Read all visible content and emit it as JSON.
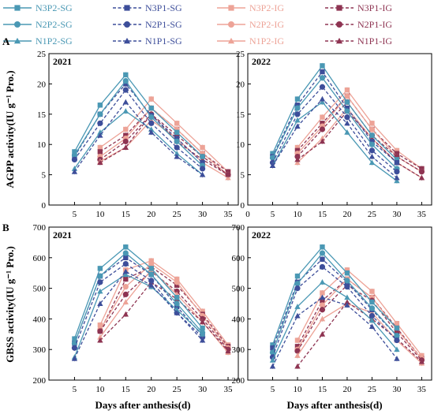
{
  "legend": [
    {
      "name": "N3P2-SG",
      "color": "#4A98B4",
      "dash": "solid",
      "marker": "square"
    },
    {
      "name": "N3P1-SG",
      "color": "#3D4E9A",
      "dash": "dashed",
      "marker": "square"
    },
    {
      "name": "N3P2-IG",
      "color": "#EDA397",
      "dash": "solid",
      "marker": "square"
    },
    {
      "name": "N3P1-IG",
      "color": "#8E3452",
      "dash": "dashed",
      "marker": "square"
    },
    {
      "name": "N2P2-SG",
      "color": "#4A98B4",
      "dash": "solid",
      "marker": "circle"
    },
    {
      "name": "N2P1-SG",
      "color": "#3D4E9A",
      "dash": "dashed",
      "marker": "circle"
    },
    {
      "name": "N2P2-IG",
      "color": "#EDA397",
      "dash": "solid",
      "marker": "circle"
    },
    {
      "name": "N2P1-IG",
      "color": "#8E3452",
      "dash": "dashed",
      "marker": "circle"
    },
    {
      "name": "N1P2-SG",
      "color": "#4A98B4",
      "dash": "solid",
      "marker": "triangle"
    },
    {
      "name": "N1P1-SG",
      "color": "#3D4E9A",
      "dash": "dashed",
      "marker": "triangle"
    },
    {
      "name": "N1P2-IG",
      "color": "#EDA397",
      "dash": "solid",
      "marker": "triangle"
    },
    {
      "name": "N1P1-IG",
      "color": "#8E3452",
      "dash": "dashed",
      "marker": "triangle"
    }
  ],
  "panel_letters": {
    "a": "A",
    "b": "B"
  },
  "ylabels": {
    "agpp": "AGPP activity(IU g⁻¹ Pro.)",
    "gbss": "GBSS activity(IU g⁻¹ Pro.)"
  },
  "xlabel": "Days after anthesis(d)",
  "chart_data": [
    {
      "type": "line",
      "title": "2021",
      "xlabel": "",
      "ylabel": "AGPP activity(IU g⁻¹ Pro.)",
      "ylim": [
        0,
        25
      ],
      "yticks": [
        0,
        5,
        10,
        15,
        20,
        25
      ],
      "ytick_labels": [
        "0",
        "5",
        "10",
        "15",
        "20",
        "25"
      ],
      "xlim": [
        0,
        37
      ],
      "xticks": [
        5,
        10,
        15,
        20,
        25,
        30,
        35
      ],
      "xtick_labels": [
        "5",
        "10",
        "15",
        "20",
        "25",
        "30",
        "35"
      ],
      "x": [
        5,
        10,
        15,
        20,
        25,
        30,
        35
      ],
      "series": [
        {
          "name": "N3P2-SG",
          "values": [
            8.8,
            16.5,
            21.5,
            16.0,
            12.0,
            8.0,
            null
          ]
        },
        {
          "name": "N3P1-SG",
          "values": [
            8.0,
            15.0,
            20.0,
            14.8,
            11.0,
            7.0,
            null
          ]
        },
        {
          "name": "N3P2-IG",
          "values": [
            null,
            9.5,
            12.5,
            17.5,
            13.5,
            9.5,
            5.5
          ]
        },
        {
          "name": "N3P1-IG",
          "values": [
            null,
            8.8,
            11.5,
            16.0,
            12.5,
            8.5,
            5.5
          ]
        },
        {
          "name": "N2P2-SG",
          "values": [
            8.2,
            15.0,
            20.5,
            14.5,
            10.5,
            6.5,
            null
          ]
        },
        {
          "name": "N2P1-SG",
          "values": [
            7.5,
            13.5,
            19.0,
            13.5,
            9.5,
            6.0,
            null
          ]
        },
        {
          "name": "N2P2-IG",
          "values": [
            null,
            8.0,
            11.0,
            16.0,
            12.5,
            8.5,
            5.0
          ]
        },
        {
          "name": "N2P1-IG",
          "values": [
            null,
            7.5,
            10.5,
            15.0,
            11.5,
            8.0,
            5.0
          ]
        },
        {
          "name": "N1P2-SG",
          "values": [
            6.0,
            12.0,
            15.5,
            12.5,
            8.5,
            5.0,
            null
          ]
        },
        {
          "name": "N1P1-SG",
          "values": [
            5.5,
            11.5,
            17.0,
            12.0,
            8.0,
            5.0,
            null
          ]
        },
        {
          "name": "N1P2-IG",
          "values": [
            null,
            7.2,
            9.5,
            14.0,
            11.0,
            7.0,
            4.5
          ]
        },
        {
          "name": "N1P1-IG",
          "values": [
            null,
            7.0,
            9.5,
            15.0,
            10.5,
            7.5,
            5.0
          ]
        }
      ]
    },
    {
      "type": "line",
      "title": "2022",
      "xlabel": "",
      "ylabel": "",
      "ylim": [
        0,
        25
      ],
      "yticks": [
        0,
        5,
        10,
        15,
        20,
        25
      ],
      "ytick_labels": [
        "0",
        "5",
        "10",
        "15",
        "20",
        "25"
      ],
      "xlim": [
        0,
        37
      ],
      "xticks": [
        0,
        5,
        10,
        15,
        20,
        25,
        30,
        35
      ],
      "xtick_labels": [
        "0",
        "5",
        "10",
        "15",
        "20",
        "25",
        "30",
        "35"
      ],
      "x": [
        5,
        10,
        15,
        20,
        25,
        30,
        35
      ],
      "series": [
        {
          "name": "N3P2-SG",
          "values": [
            8.5,
            17.5,
            23.0,
            17.0,
            11.5,
            7.5,
            null
          ]
        },
        {
          "name": "N3P1-SG",
          "values": [
            8.0,
            16.5,
            22.0,
            16.0,
            10.5,
            7.0,
            null
          ]
        },
        {
          "name": "N3P2-IG",
          "values": [
            null,
            9.5,
            14.5,
            19.0,
            13.5,
            9.0,
            6.0
          ]
        },
        {
          "name": "N3P1-IG",
          "values": [
            null,
            9.0,
            13.5,
            18.0,
            12.5,
            8.5,
            6.0
          ]
        },
        {
          "name": "N2P2-SG",
          "values": [
            7.8,
            16.0,
            21.0,
            15.5,
            10.0,
            6.0,
            null
          ]
        },
        {
          "name": "N2P1-SG",
          "values": [
            7.0,
            15.0,
            19.5,
            14.5,
            9.0,
            5.5,
            null
          ]
        },
        {
          "name": "N2P2-IG",
          "values": [
            null,
            8.5,
            13.0,
            18.0,
            12.5,
            8.0,
            5.5
          ]
        },
        {
          "name": "N2P1-IG",
          "values": [
            null,
            8.0,
            12.5,
            17.0,
            11.5,
            8.0,
            5.5
          ]
        },
        {
          "name": "N1P2-SG",
          "values": [
            6.5,
            14.0,
            17.0,
            12.0,
            7.0,
            4.0,
            null
          ]
        },
        {
          "name": "N1P1-SG",
          "values": [
            6.5,
            13.0,
            17.5,
            13.5,
            8.0,
            4.5,
            null
          ]
        },
        {
          "name": "N1P2-IG",
          "values": [
            null,
            7.0,
            11.0,
            16.0,
            11.0,
            7.0,
            4.5
          ]
        },
        {
          "name": "N1P1-IG",
          "values": [
            null,
            7.5,
            10.5,
            15.5,
            11.0,
            7.0,
            4.5
          ]
        }
      ]
    },
    {
      "type": "line",
      "title": "2021",
      "xlabel": "Days after anthesis(d)",
      "ylabel": "GBSS activity(IU g⁻¹ Pro.)",
      "ylim": [
        200,
        700
      ],
      "yticks": [
        200,
        300,
        400,
        500,
        600,
        700
      ],
      "ytick_labels": [
        "200",
        "300",
        "400",
        "500",
        "600",
        "700"
      ],
      "xlim": [
        0,
        37
      ],
      "xticks": [
        5,
        10,
        15,
        20,
        25,
        30,
        35
      ],
      "xtick_labels": [
        "5",
        "10",
        "15",
        "20",
        "25",
        "30",
        "35"
      ],
      "x": [
        5,
        10,
        15,
        20,
        25,
        30,
        35
      ],
      "series": [
        {
          "name": "N3P2-SG",
          "values": [
            335,
            565,
            635,
            565,
            470,
            370,
            null
          ]
        },
        {
          "name": "N3P1-SG",
          "values": [
            320,
            540,
            600,
            545,
            440,
            345,
            null
          ]
        },
        {
          "name": "N3P2-IG",
          "values": [
            null,
            380,
            560,
            590,
            530,
            425,
            315
          ]
        },
        {
          "name": "N3P1-IG",
          "values": [
            null,
            360,
            530,
            570,
            510,
            415,
            310
          ]
        },
        {
          "name": "N2P2-SG",
          "values": [
            320,
            540,
            615,
            545,
            450,
            355,
            null
          ]
        },
        {
          "name": "N2P1-SG",
          "values": [
            305,
            520,
            580,
            525,
            420,
            340,
            null
          ]
        },
        {
          "name": "N2P2-IG",
          "values": [
            null,
            365,
            505,
            580,
            520,
            410,
            305
          ]
        },
        {
          "name": "N2P1-IG",
          "values": [
            null,
            360,
            480,
            555,
            490,
            400,
            300
          ]
        },
        {
          "name": "N1P2-SG",
          "values": [
            275,
            490,
            545,
            505,
            430,
            350,
            null
          ]
        },
        {
          "name": "N1P1-SG",
          "values": [
            270,
            450,
            555,
            510,
            420,
            330,
            null
          ]
        },
        {
          "name": "N1P2-IG",
          "values": [
            null,
            340,
            455,
            560,
            480,
            390,
            290
          ]
        },
        {
          "name": "N1P1-IG",
          "values": [
            null,
            330,
            415,
            520,
            465,
            390,
            295
          ]
        }
      ]
    },
    {
      "type": "line",
      "title": "2022",
      "xlabel": "Days after anthesis(d)",
      "ylabel": "",
      "ylim": [
        200,
        700
      ],
      "yticks": [
        200,
        300,
        400,
        500,
        600,
        700
      ],
      "ytick_labels": [
        "200",
        "300",
        "400",
        "500",
        "600",
        "700"
      ],
      "xlim": [
        0,
        37
      ],
      "xticks": [
        5,
        10,
        15,
        20,
        25,
        30,
        35
      ],
      "xtick_labels": [
        "5",
        "10",
        "15",
        "20",
        "25",
        "30",
        "35"
      ],
      "x": [
        5,
        10,
        15,
        20,
        25,
        30,
        35
      ],
      "series": [
        {
          "name": "N3P2-SG",
          "values": [
            315,
            540,
            635,
            550,
            455,
            370,
            null
          ]
        },
        {
          "name": "N3P1-SG",
          "values": [
            305,
            520,
            595,
            520,
            430,
            345,
            null
          ]
        },
        {
          "name": "N3P2-IG",
          "values": [
            null,
            330,
            485,
            560,
            490,
            385,
            280
          ]
        },
        {
          "name": "N3P1-IG",
          "values": [
            null,
            310,
            460,
            530,
            470,
            370,
            270
          ]
        },
        {
          "name": "N2P2-SG",
          "values": [
            290,
            515,
            615,
            525,
            435,
            345,
            null
          ]
        },
        {
          "name": "N2P1-SG",
          "values": [
            275,
            500,
            570,
            505,
            410,
            330,
            null
          ]
        },
        {
          "name": "N2P2-IG",
          "values": [
            null,
            300,
            445,
            530,
            470,
            365,
            270
          ]
        },
        {
          "name": "N2P1-IG",
          "values": [
            null,
            295,
            430,
            510,
            460,
            355,
            265
          ]
        },
        {
          "name": "N1P2-SG",
          "values": [
            265,
            440,
            520,
            470,
            395,
            300,
            null
          ]
        },
        {
          "name": "N1P1-SG",
          "values": [
            245,
            410,
            470,
            445,
            375,
            270,
            null
          ]
        },
        {
          "name": "N1P2-IG",
          "values": [
            null,
            280,
            400,
            450,
            420,
            330,
            255
          ]
        },
        {
          "name": "N1P1-IG",
          "values": [
            null,
            245,
            350,
            455,
            400,
            335,
            260
          ]
        }
      ]
    }
  ]
}
